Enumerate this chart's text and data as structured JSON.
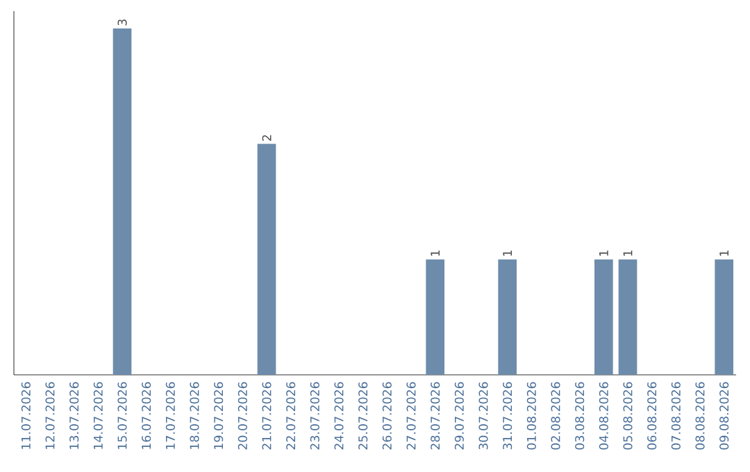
{
  "chart_data": {
    "type": "bar",
    "categories": [
      "11.07.2026",
      "12.07.2026",
      "13.07.2026",
      "14.07.2026",
      "15.07.2026",
      "16.07.2026",
      "17.07.2026",
      "18.07.2026",
      "19.07.2026",
      "20.07.2026",
      "21.07.2026",
      "22.07.2026",
      "23.07.2026",
      "24.07.2026",
      "25.07.2026",
      "26.07.2026",
      "27.07.2026",
      "28.07.2026",
      "29.07.2026",
      "30.07.2026",
      "31.07.2026",
      "01.08.2026",
      "02.08.2026",
      "03.08.2026",
      "04.08.2026",
      "05.08.2026",
      "06.08.2026",
      "07.08.2026",
      "08.08.2026",
      "09.08.2026"
    ],
    "values": [
      0,
      0,
      0,
      0,
      3,
      0,
      0,
      0,
      0,
      0,
      2,
      0,
      0,
      0,
      0,
      0,
      0,
      1,
      0,
      0,
      1,
      0,
      0,
      0,
      1,
      1,
      0,
      0,
      0,
      1
    ],
    "value_labels": [
      null,
      null,
      null,
      null,
      "3",
      null,
      null,
      null,
      null,
      null,
      "2",
      null,
      null,
      null,
      null,
      null,
      null,
      "1",
      null,
      null,
      "1",
      null,
      null,
      null,
      "1",
      "1",
      null,
      null,
      null,
      "1"
    ],
    "color": "#6d8cab"
  }
}
